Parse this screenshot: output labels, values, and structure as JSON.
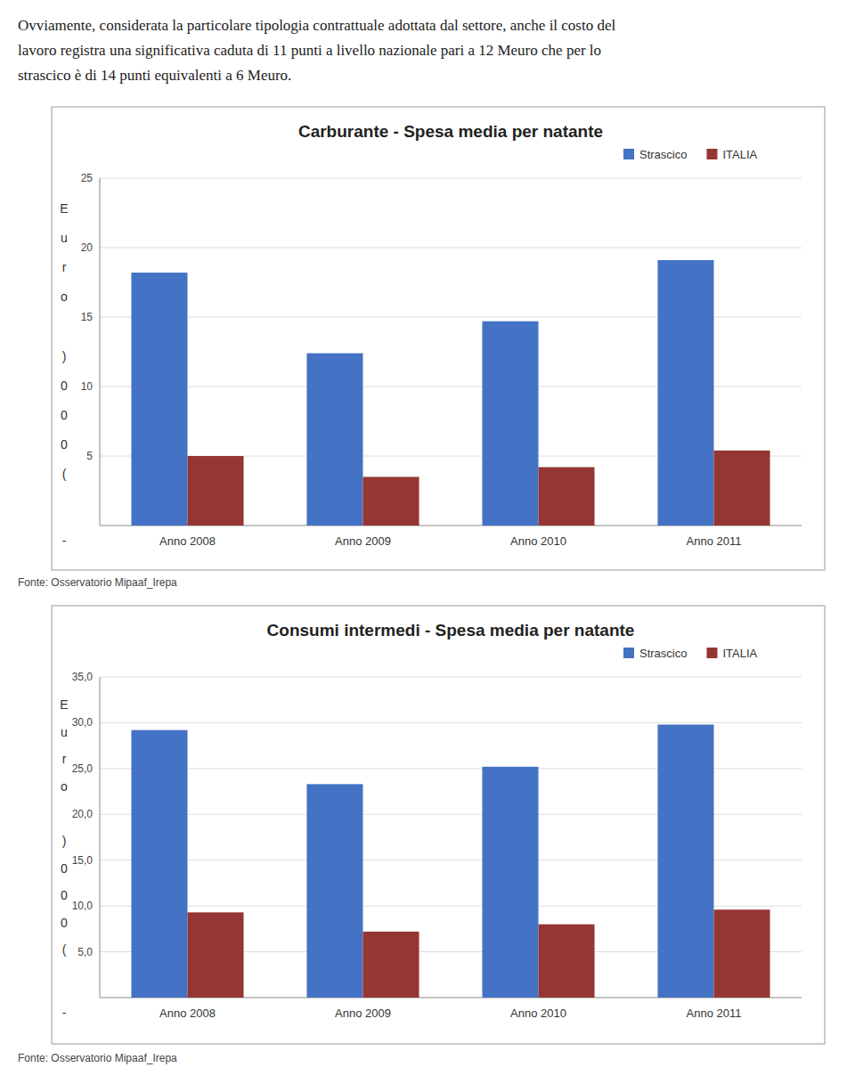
{
  "intro_text": [
    "Ovviamente, considerata la particolare tipologia contrattuale adottata dal settore, anche il costo del",
    "lavoro registra una significativa caduta di 11 punti a livello nazionale pari a 12 Meuro che per lo",
    "strascico è di 14 punti equivalenti a 6 Meuro."
  ],
  "chart_data": [
    {
      "type": "bar",
      "title": "Carburante - Spesa media per natante",
      "categories": [
        "Anno 2008",
        "Anno 2009",
        "Anno 2010",
        "Anno 2011"
      ],
      "series": [
        {
          "name": "Strascico",
          "color": "#4472C4",
          "values": [
            18.2,
            12.4,
            14.7,
            19.1
          ]
        },
        {
          "name": "ITALIA",
          "color": "#943634",
          "values": [
            5.0,
            3.5,
            4.2,
            5.4
          ]
        }
      ],
      "ylim": [
        0,
        25
      ],
      "yticks": [
        5,
        10,
        15,
        20,
        25
      ],
      "y_label": "Euro )000(",
      "annotations": [
        "-"
      ],
      "source": "Fonte: Osservatorio Mipaaf_Irepa",
      "grid": true,
      "legend": "top"
    },
    {
      "type": "bar",
      "title": "Consumi intermedi - Spesa media per natante",
      "categories": [
        "Anno 2008",
        "Anno 2009",
        "Anno 2010",
        "Anno 2011"
      ],
      "series": [
        {
          "name": "Strascico",
          "color": "#4472C4",
          "values": [
            29.2,
            23.3,
            25.2,
            29.8
          ]
        },
        {
          "name": "ITALIA",
          "color": "#943634",
          "values": [
            9.3,
            7.2,
            8.0,
            9.6
          ]
        }
      ],
      "ylim": [
        0,
        35
      ],
      "yticks": [
        {
          "value": 5.0,
          "label": "5,0"
        },
        {
          "value": 10.0,
          "label": "10,0"
        },
        {
          "value": 15.0,
          "label": "15,0"
        },
        {
          "value": 20.0,
          "label": "20,0"
        },
        {
          "value": 25.0,
          "label": "25,0"
        },
        {
          "value": 30.0,
          "label": "30,0"
        },
        {
          "value": 35.0,
          "label": "35,0"
        }
      ],
      "y_label": "Euro )000(",
      "annotations": [
        "-"
      ],
      "source": "Fonte: Osservatorio Mipaaf_Irepa",
      "grid": true,
      "legend": "top"
    }
  ]
}
